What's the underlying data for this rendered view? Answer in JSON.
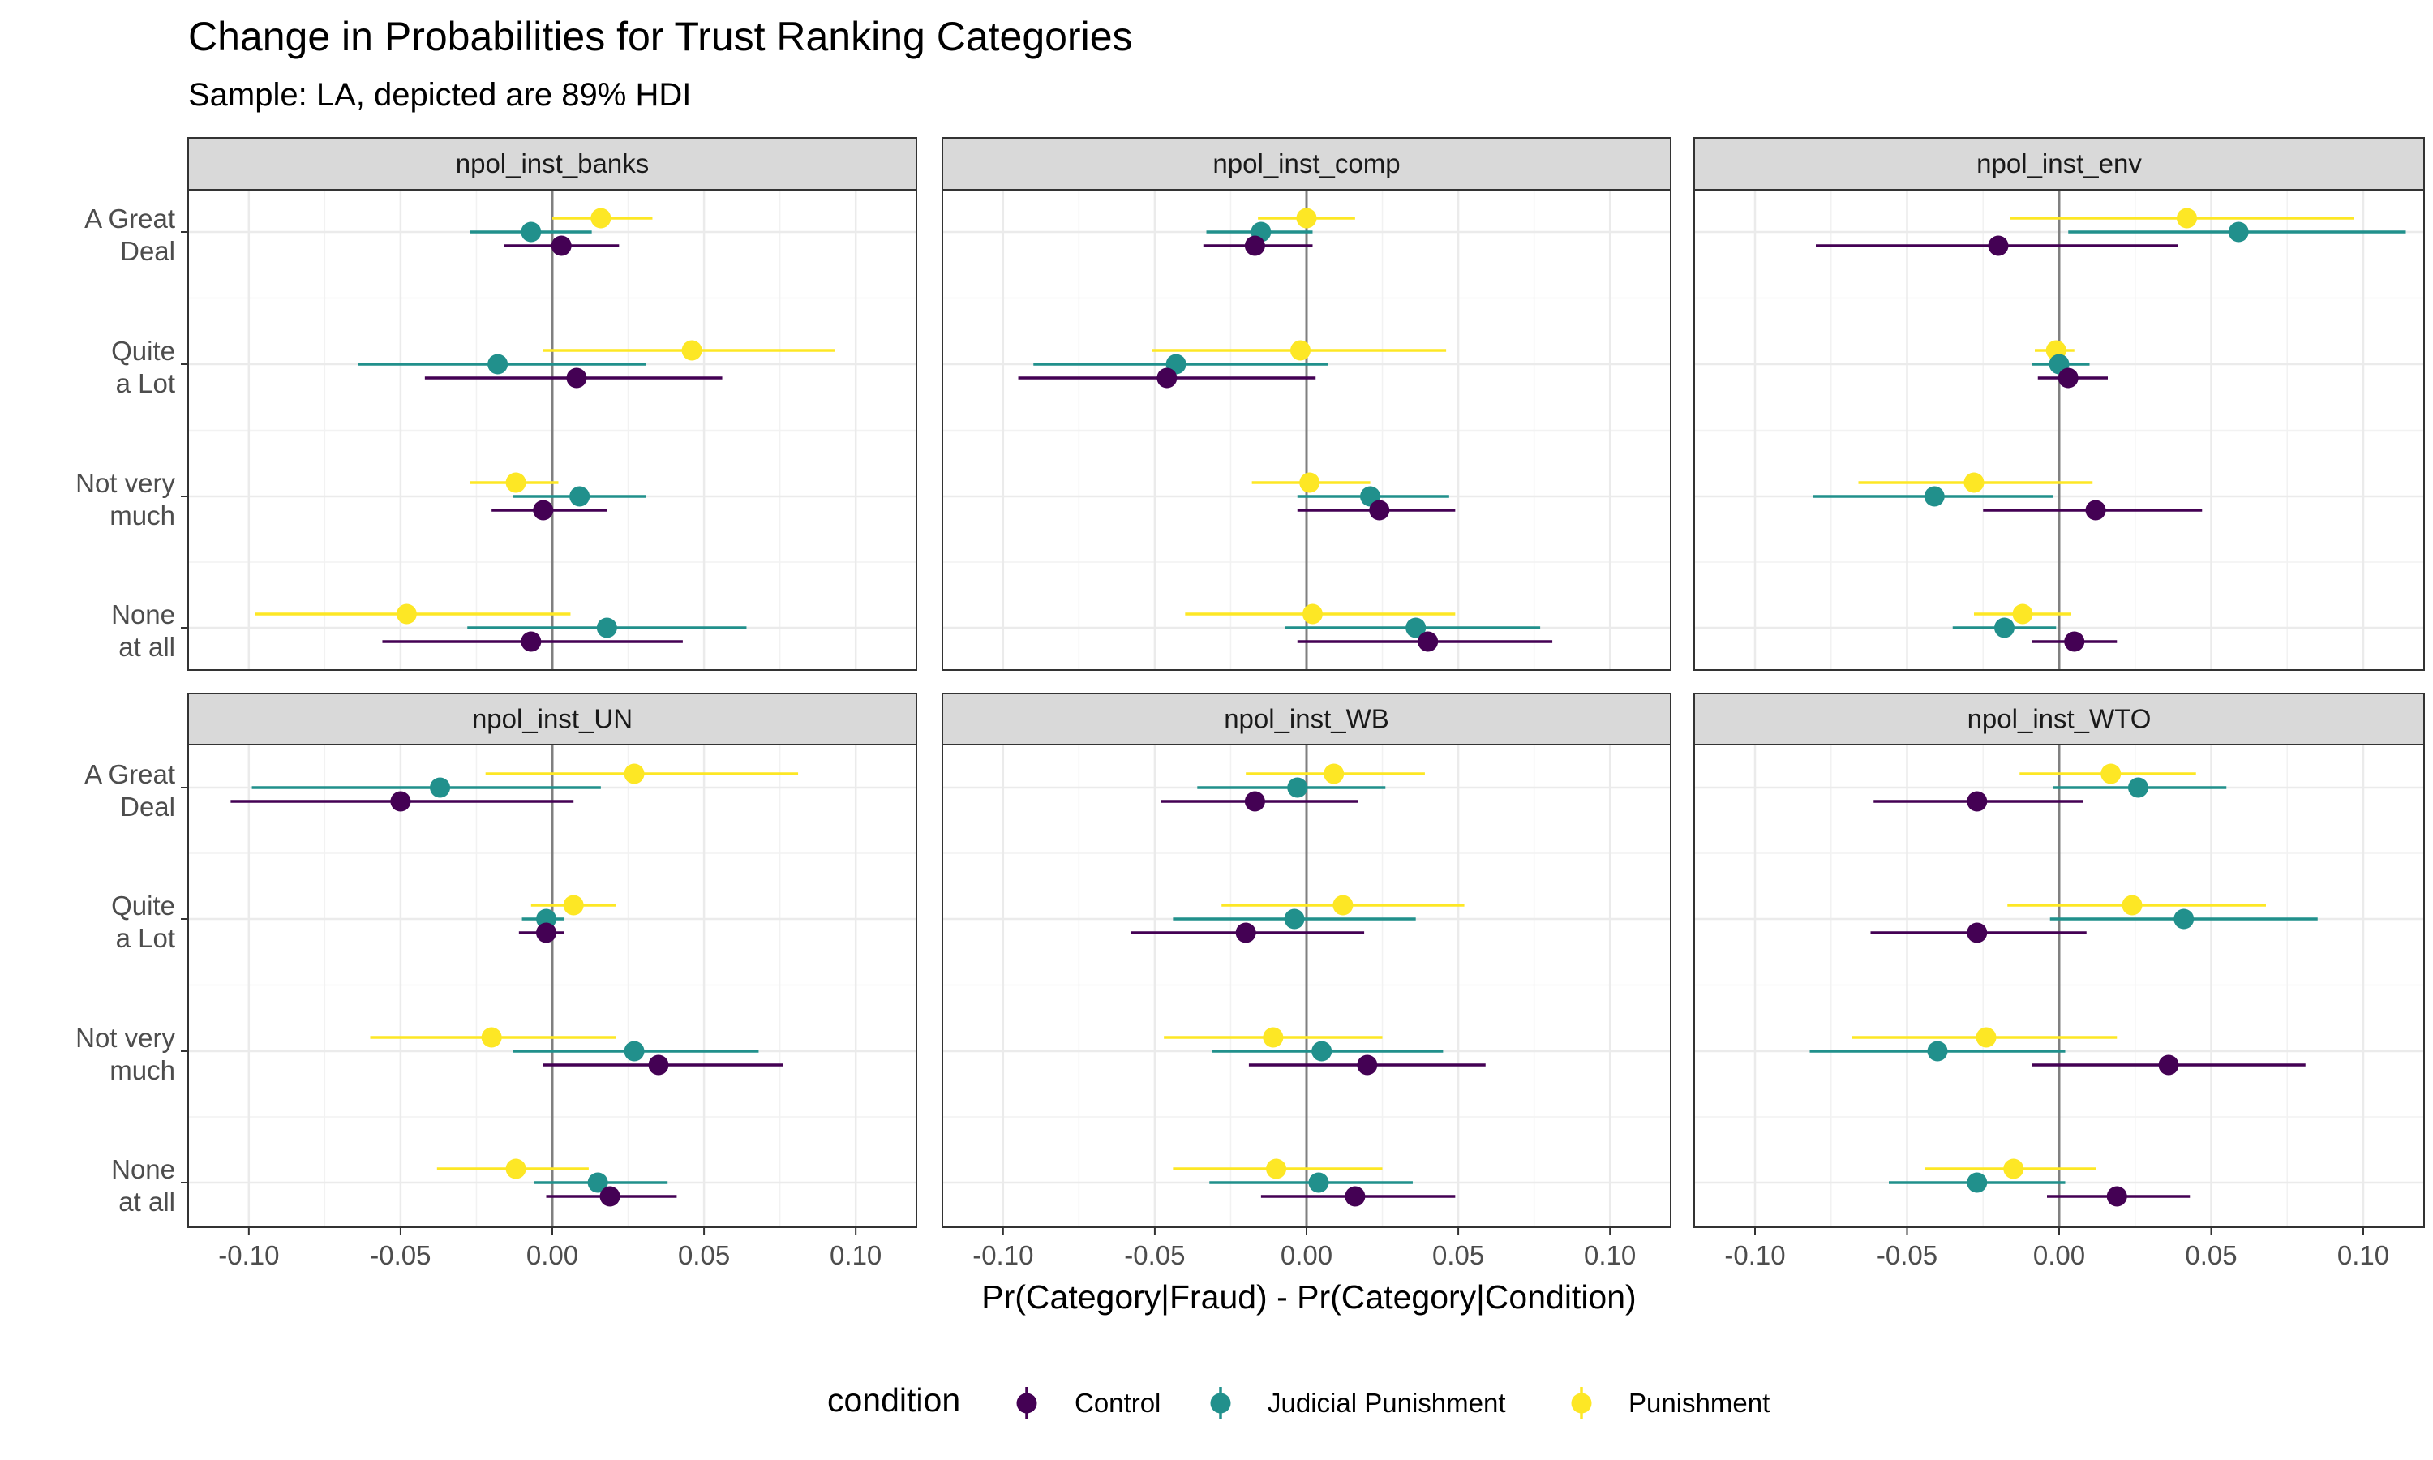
{
  "chart_data": {
    "type": "scatter",
    "subtype": "point-range facet plot",
    "title": "Change in Probabilities for Trust Ranking Categories",
    "subtitle": "Sample: LA, depicted are 89% HDI",
    "xlabel": "Pr(Category|Fraud) - Pr(Category|Condition)",
    "ylabel": "",
    "xlim": [
      -0.12,
      0.12
    ],
    "xticks": [
      -0.1,
      -0.05,
      0.0,
      0.05,
      0.1
    ],
    "xtick_labels": [
      "-0.10",
      "-0.05",
      "0.00",
      "0.05",
      "0.10"
    ],
    "zero_reference_line": true,
    "grid": true,
    "legend": {
      "title": "condition",
      "position": "bottom",
      "entries": [
        {
          "name": "Control",
          "color": "#440154"
        },
        {
          "name": "Judicial Punishment",
          "color": "#21908C"
        },
        {
          "name": "Punishment",
          "color": "#FDE725"
        }
      ]
    },
    "categories": [
      {
        "line1": "A Great",
        "line2": "Deal"
      },
      {
        "line1": "Quite",
        "line2": "a Lot"
      },
      {
        "line1": "Not very",
        "line2": "much"
      },
      {
        "line1": "None",
        "line2": "at all"
      }
    ],
    "panels": [
      {
        "name": "npol_inst_banks",
        "series": {
          "Control": [
            {
              "mean": 0.003,
              "lo": -0.016,
              "hi": 0.022
            },
            {
              "mean": 0.008,
              "lo": -0.042,
              "hi": 0.056
            },
            {
              "mean": -0.003,
              "lo": -0.02,
              "hi": 0.018
            },
            {
              "mean": -0.007,
              "lo": -0.056,
              "hi": 0.043
            }
          ],
          "Judicial Punishment": [
            {
              "mean": -0.007,
              "lo": -0.027,
              "hi": 0.013
            },
            {
              "mean": -0.018,
              "lo": -0.064,
              "hi": 0.031
            },
            {
              "mean": 0.009,
              "lo": -0.013,
              "hi": 0.031
            },
            {
              "mean": 0.018,
              "lo": -0.028,
              "hi": 0.064
            }
          ],
          "Punishment": [
            {
              "mean": 0.016,
              "lo": 0.0,
              "hi": 0.033
            },
            {
              "mean": 0.046,
              "lo": -0.003,
              "hi": 0.093
            },
            {
              "mean": -0.012,
              "lo": -0.027,
              "hi": 0.002
            },
            {
              "mean": -0.048,
              "lo": -0.098,
              "hi": 0.006
            }
          ]
        }
      },
      {
        "name": "npol_inst_comp",
        "series": {
          "Control": [
            {
              "mean": -0.017,
              "lo": -0.034,
              "hi": 0.002
            },
            {
              "mean": -0.046,
              "lo": -0.095,
              "hi": 0.003
            },
            {
              "mean": 0.024,
              "lo": -0.003,
              "hi": 0.049
            },
            {
              "mean": 0.04,
              "lo": -0.003,
              "hi": 0.081
            }
          ],
          "Judicial Punishment": [
            {
              "mean": -0.015,
              "lo": -0.033,
              "hi": 0.002
            },
            {
              "mean": -0.043,
              "lo": -0.09,
              "hi": 0.007
            },
            {
              "mean": 0.021,
              "lo": -0.003,
              "hi": 0.047
            },
            {
              "mean": 0.036,
              "lo": -0.007,
              "hi": 0.077
            }
          ],
          "Punishment": [
            {
              "mean": 0.0,
              "lo": -0.016,
              "hi": 0.016
            },
            {
              "mean": -0.002,
              "lo": -0.051,
              "hi": 0.046
            },
            {
              "mean": 0.001,
              "lo": -0.018,
              "hi": 0.021
            },
            {
              "mean": 0.002,
              "lo": -0.04,
              "hi": 0.049
            }
          ]
        }
      },
      {
        "name": "npol_inst_env",
        "series": {
          "Control": [
            {
              "mean": -0.02,
              "lo": -0.08,
              "hi": 0.039
            },
            {
              "mean": 0.003,
              "lo": -0.007,
              "hi": 0.016
            },
            {
              "mean": 0.012,
              "lo": -0.025,
              "hi": 0.047
            },
            {
              "mean": 0.005,
              "lo": -0.009,
              "hi": 0.019
            }
          ],
          "Judicial Punishment": [
            {
              "mean": 0.059,
              "lo": 0.003,
              "hi": 0.114
            },
            {
              "mean": 0.0,
              "lo": -0.009,
              "hi": 0.01
            },
            {
              "mean": -0.041,
              "lo": -0.081,
              "hi": -0.002
            },
            {
              "mean": -0.018,
              "lo": -0.035,
              "hi": -0.001
            }
          ],
          "Punishment": [
            {
              "mean": 0.042,
              "lo": -0.016,
              "hi": 0.097
            },
            {
              "mean": -0.001,
              "lo": -0.008,
              "hi": 0.005
            },
            {
              "mean": -0.028,
              "lo": -0.066,
              "hi": 0.011
            },
            {
              "mean": -0.012,
              "lo": -0.028,
              "hi": 0.004
            }
          ]
        }
      },
      {
        "name": "npol_inst_UN",
        "series": {
          "Control": [
            {
              "mean": -0.05,
              "lo": -0.106,
              "hi": 0.007
            },
            {
              "mean": -0.002,
              "lo": -0.011,
              "hi": 0.004
            },
            {
              "mean": 0.035,
              "lo": -0.003,
              "hi": 0.076
            },
            {
              "mean": 0.019,
              "lo": -0.002,
              "hi": 0.041
            }
          ],
          "Judicial Punishment": [
            {
              "mean": -0.037,
              "lo": -0.099,
              "hi": 0.016
            },
            {
              "mean": -0.002,
              "lo": -0.01,
              "hi": 0.004
            },
            {
              "mean": 0.027,
              "lo": -0.013,
              "hi": 0.068
            },
            {
              "mean": 0.015,
              "lo": -0.006,
              "hi": 0.038
            }
          ],
          "Punishment": [
            {
              "mean": 0.027,
              "lo": -0.022,
              "hi": 0.081
            },
            {
              "mean": 0.007,
              "lo": -0.007,
              "hi": 0.021
            },
            {
              "mean": -0.02,
              "lo": -0.06,
              "hi": 0.021
            },
            {
              "mean": -0.012,
              "lo": -0.038,
              "hi": 0.012
            }
          ]
        }
      },
      {
        "name": "npol_inst_WB",
        "series": {
          "Control": [
            {
              "mean": -0.017,
              "lo": -0.048,
              "hi": 0.017
            },
            {
              "mean": -0.02,
              "lo": -0.058,
              "hi": 0.019
            },
            {
              "mean": 0.02,
              "lo": -0.019,
              "hi": 0.059
            },
            {
              "mean": 0.016,
              "lo": -0.015,
              "hi": 0.049
            }
          ],
          "Judicial Punishment": [
            {
              "mean": -0.003,
              "lo": -0.036,
              "hi": 0.026
            },
            {
              "mean": -0.004,
              "lo": -0.044,
              "hi": 0.036
            },
            {
              "mean": 0.005,
              "lo": -0.031,
              "hi": 0.045
            },
            {
              "mean": 0.004,
              "lo": -0.032,
              "hi": 0.035
            }
          ],
          "Punishment": [
            {
              "mean": 0.009,
              "lo": -0.02,
              "hi": 0.039
            },
            {
              "mean": 0.012,
              "lo": -0.028,
              "hi": 0.052
            },
            {
              "mean": -0.011,
              "lo": -0.047,
              "hi": 0.025
            },
            {
              "mean": -0.01,
              "lo": -0.044,
              "hi": 0.025
            }
          ]
        }
      },
      {
        "name": "npol_inst_WTO",
        "series": {
          "Control": [
            {
              "mean": -0.027,
              "lo": -0.061,
              "hi": 0.008
            },
            {
              "mean": -0.027,
              "lo": -0.062,
              "hi": 0.009
            },
            {
              "mean": 0.036,
              "lo": -0.009,
              "hi": 0.081
            },
            {
              "mean": 0.019,
              "lo": -0.004,
              "hi": 0.043
            }
          ],
          "Judicial Punishment": [
            {
              "mean": 0.026,
              "lo": -0.002,
              "hi": 0.055
            },
            {
              "mean": 0.041,
              "lo": -0.003,
              "hi": 0.085
            },
            {
              "mean": -0.04,
              "lo": -0.082,
              "hi": 0.002
            },
            {
              "mean": -0.027,
              "lo": -0.056,
              "hi": 0.002
            }
          ],
          "Punishment": [
            {
              "mean": 0.017,
              "lo": -0.013,
              "hi": 0.045
            },
            {
              "mean": 0.024,
              "lo": -0.017,
              "hi": 0.068
            },
            {
              "mean": -0.024,
              "lo": -0.068,
              "hi": 0.019
            },
            {
              "mean": -0.015,
              "lo": -0.044,
              "hi": 0.012
            }
          ]
        }
      }
    ]
  }
}
